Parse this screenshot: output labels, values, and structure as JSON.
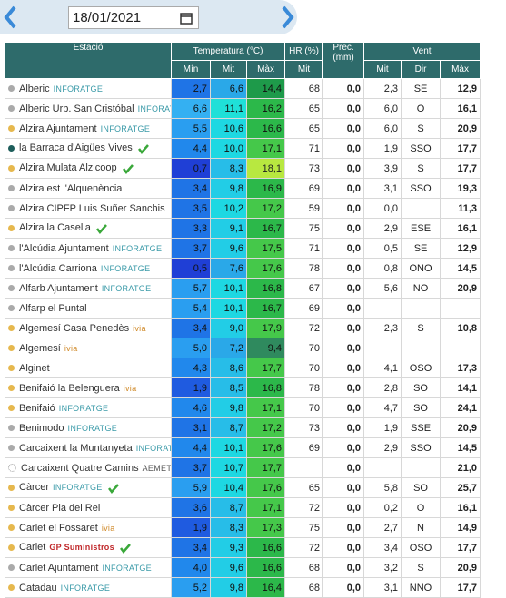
{
  "header": {
    "date": "18/01/2021"
  },
  "table": {
    "columns": {
      "station": "Estació",
      "temperature": "Temperatura (°C)",
      "hr": "HR (%)",
      "prec": "Prec. (mm)",
      "wind": "Vent"
    },
    "subheaders": [
      "Mín",
      "Mit",
      "Màx",
      "Mit",
      "Mit",
      "Dir",
      "Màx"
    ],
    "rows": [
      {
        "station": "Alberic",
        "tag": "INFORATGE",
        "tag_color": "#3a9aa8",
        "dot": "#aaaaaa",
        "check": false,
        "values": [
          "2,7",
          "6,6",
          "14,4",
          "68",
          "0,0",
          "2,3",
          "SE",
          "12,9"
        ],
        "colors": [
          "#1f74e6",
          "#2aa8e8",
          "#1e9a4a"
        ]
      },
      {
        "station": "Alberic Urb. San Cristóbal",
        "tag": "INFORATGE",
        "tag_color": "#3a9aa8",
        "dot": "#aaaaaa",
        "check": false,
        "values": [
          "6,6",
          "11,1",
          "16,2",
          "65",
          "0,0",
          "6,0",
          "O",
          "16,1"
        ],
        "colors": [
          "#34b0f2",
          "#1fe0d8",
          "#2cb84a"
        ]
      },
      {
        "station": "Alzira Ajuntament",
        "tag": "INFORATGE",
        "tag_color": "#3a9aa8",
        "dot": "#e6b84e",
        "check": false,
        "values": [
          "5,5",
          "10,6",
          "16,6",
          "65",
          "0,0",
          "6,0",
          "S",
          "20,9"
        ],
        "colors": [
          "#2a9ef0",
          "#1ed8e2",
          "#2cb84a"
        ]
      },
      {
        "station": "la Barraca d'Aigües Vives",
        "tag": null,
        "tag_color": null,
        "dot": "#1d5d5a",
        "check": true,
        "values": [
          "4,4",
          "10,0",
          "17,1",
          "71",
          "0,0",
          "1,9",
          "SSO",
          "17,7"
        ],
        "colors": [
          "#2188ec",
          "#1ed8e2",
          "#45c84a"
        ]
      },
      {
        "station": "Alzira Mulata Alzicoop",
        "tag": null,
        "tag_color": null,
        "dot": "#e6b84e",
        "check": true,
        "values": [
          "0,7",
          "8,3",
          "18,1",
          "73",
          "0,0",
          "3,9",
          "S",
          "17,7"
        ],
        "colors": [
          "#1f3fd6",
          "#27bde8",
          "#b8e840"
        ]
      },
      {
        "station": "Alzira est l'Alquenència",
        "tag": null,
        "tag_color": null,
        "dot": "#aaaaaa",
        "check": false,
        "values": [
          "3,4",
          "9,8",
          "16,9",
          "69",
          "0,0",
          "3,1",
          "SSO",
          "19,3"
        ],
        "colors": [
          "#1f74e6",
          "#22cde6",
          "#2cb84a"
        ]
      },
      {
        "station": "Alzira CIPFP Luis Suñer Sanchis",
        "tag": null,
        "tag_color": null,
        "dot": "#aaaaaa",
        "check": false,
        "values": [
          "3,5",
          "10,2",
          "17,2",
          "59",
          "0,0",
          "0,0",
          null,
          "11,3"
        ],
        "colors": [
          "#1f74e6",
          "#1ed8e2",
          "#45c84a"
        ]
      },
      {
        "station": "Alzira la Casella",
        "tag": null,
        "tag_color": null,
        "dot": "#e6b84e",
        "check": true,
        "values": [
          "3,3",
          "9,1",
          "16,7",
          "75",
          "0,0",
          "2,9",
          "ESE",
          "16,1"
        ],
        "colors": [
          "#1f74e6",
          "#22cde6",
          "#2cb84a"
        ]
      },
      {
        "station": "l'Alcúdia Ajuntament",
        "tag": "INFORATGE",
        "tag_color": "#3a9aa8",
        "dot": "#aaaaaa",
        "check": false,
        "values": [
          "3,7",
          "9,6",
          "17,5",
          "71",
          "0,0",
          "0,5",
          "SE",
          "12,9"
        ],
        "colors": [
          "#1f74e6",
          "#22cde6",
          "#45c84a"
        ]
      },
      {
        "station": "l'Alcúdia Carriona",
        "tag": "INFORATGE",
        "tag_color": "#3a9aa8",
        "dot": "#aaaaaa",
        "check": false,
        "values": [
          "0,5",
          "7,6",
          "17,6",
          "78",
          "0,0",
          "0,8",
          "ONO",
          "14,5"
        ],
        "colors": [
          "#1f3fd6",
          "#2aa8e8",
          "#45c84a"
        ]
      },
      {
        "station": "Alfarb Ajuntament",
        "tag": "INFORATGE",
        "tag_color": "#3a9aa8",
        "dot": "#aaaaaa",
        "check": false,
        "values": [
          "5,7",
          "10,1",
          "16,8",
          "67",
          "0,0",
          "5,6",
          "NO",
          "20,9"
        ],
        "colors": [
          "#2a9ef0",
          "#1ed8e2",
          "#2cb84a"
        ]
      },
      {
        "station": "Alfarp el Puntal",
        "tag": null,
        "tag_color": null,
        "dot": "#aaaaaa",
        "check": false,
        "values": [
          "5,4",
          "10,1",
          "16,7",
          "69",
          "0,0",
          null,
          null,
          null
        ],
        "colors": [
          "#2a9ef0",
          "#1ed8e2",
          "#2cb84a"
        ]
      },
      {
        "station": "Algemesí Casa Penedès",
        "tag": "ivia",
        "tag_color": "#d08a2a",
        "dot": "#e6b84e",
        "check": false,
        "values": [
          "3,4",
          "9,0",
          "17,9",
          "72",
          "0,0",
          "2,3",
          "S",
          "10,8"
        ],
        "colors": [
          "#1f74e6",
          "#22cde6",
          "#45c84a"
        ]
      },
      {
        "station": "Algemesí",
        "tag": "ivia",
        "tag_color": "#d08a2a",
        "dot": "#e6b84e",
        "check": false,
        "values": [
          "5,0",
          "7,2",
          "9,4",
          "70",
          "0,0",
          null,
          null,
          null
        ],
        "colors": [
          "#2a9ef0",
          "#2aa8e8",
          "#2f8a5e"
        ]
      },
      {
        "station": "Alginet",
        "tag": null,
        "tag_color": null,
        "dot": "#e6b84e",
        "check": false,
        "values": [
          "4,3",
          "8,6",
          "17,7",
          "70",
          "0,0",
          "4,1",
          "OSO",
          "17,3"
        ],
        "colors": [
          "#2188ec",
          "#27bde8",
          "#45c84a"
        ]
      },
      {
        "station": "Benifaió la Belenguera",
        "tag": "ivia",
        "tag_color": "#d08a2a",
        "dot": "#e6b84e",
        "check": false,
        "values": [
          "1,9",
          "8,5",
          "16,8",
          "78",
          "0,0",
          "2,8",
          "SO",
          "14,1"
        ],
        "colors": [
          "#1f5be0",
          "#27bde8",
          "#2cb84a"
        ]
      },
      {
        "station": "Benifaió",
        "tag": "INFORATGE",
        "tag_color": "#3a9aa8",
        "dot": "#e6b84e",
        "check": false,
        "values": [
          "4,6",
          "9,8",
          "17,1",
          "70",
          "0,0",
          "4,7",
          "SO",
          "24,1"
        ],
        "colors": [
          "#2188ec",
          "#22cde6",
          "#45c84a"
        ]
      },
      {
        "station": "Benimodo",
        "tag": "INFORATGE",
        "tag_color": "#3a9aa8",
        "dot": "#aaaaaa",
        "check": false,
        "values": [
          "3,1",
          "8,7",
          "17,2",
          "73",
          "0,0",
          "1,9",
          "SSE",
          "20,9"
        ],
        "colors": [
          "#1f74e6",
          "#27bde8",
          "#45c84a"
        ]
      },
      {
        "station": "Carcaixent la Muntanyeta",
        "tag": "INFORATGE",
        "tag_color": "#3a9aa8",
        "dot": "#aaaaaa",
        "check": false,
        "values": [
          "4,4",
          "10,1",
          "17,6",
          "69",
          "0,0",
          "2,9",
          "SSO",
          "14,5"
        ],
        "colors": [
          "#2188ec",
          "#1ed8e2",
          "#45c84a"
        ]
      },
      {
        "station": "Carcaixent Quatre Camins",
        "tag": "AEMET",
        "tag_color": "#555555",
        "dot": "#ffffff",
        "check": false,
        "values": [
          "3,7",
          "10,7",
          "17,7",
          null,
          "0,0",
          null,
          null,
          "21,0"
        ],
        "colors": [
          "#1f74e6",
          "#1ed8e2",
          "#45c84a"
        ]
      },
      {
        "station": "Càrcer",
        "tag": "INFORATGE",
        "tag_color": "#3a9aa8",
        "dot": "#e6b84e",
        "check": true,
        "values": [
          "5,9",
          "10,4",
          "17,6",
          "65",
          "0,0",
          "5,8",
          "SO",
          "25,7"
        ],
        "colors": [
          "#2a9ef0",
          "#1ed8e2",
          "#45c84a"
        ]
      },
      {
        "station": "Càrcer Pla del Rei",
        "tag": null,
        "tag_color": null,
        "dot": "#e6b84e",
        "check": false,
        "values": [
          "3,6",
          "8,7",
          "17,1",
          "72",
          "0,0",
          "0,2",
          "O",
          "16,1"
        ],
        "colors": [
          "#1f74e6",
          "#27bde8",
          "#45c84a"
        ]
      },
      {
        "station": "Carlet el Fossaret",
        "tag": "ivia",
        "tag_color": "#d08a2a",
        "dot": "#e6b84e",
        "check": false,
        "values": [
          "1,9",
          "8,3",
          "17,3",
          "75",
          "0,0",
          "2,7",
          "N",
          "14,9"
        ],
        "colors": [
          "#1f5be0",
          "#27bde8",
          "#45c84a"
        ]
      },
      {
        "station": "Carlet",
        "tag": "GP Suministros",
        "tag_color": "#c0282a",
        "dot": "#e6b84e",
        "check": true,
        "values": [
          "3,4",
          "9,3",
          "16,6",
          "72",
          "0,0",
          "3,4",
          "OSO",
          "17,7"
        ],
        "colors": [
          "#1f74e6",
          "#22cde6",
          "#2cb84a"
        ]
      },
      {
        "station": "Carlet Ajuntament",
        "tag": "INFORATGE",
        "tag_color": "#3a9aa8",
        "dot": "#aaaaaa",
        "check": false,
        "values": [
          "4,0",
          "9,6",
          "16,6",
          "68",
          "0,0",
          "3,2",
          "S",
          "20,9"
        ],
        "colors": [
          "#2188ec",
          "#22cde6",
          "#2cb84a"
        ]
      },
      {
        "station": "Catadau",
        "tag": "INFORATGE",
        "tag_color": "#3a9aa8",
        "dot": "#e6b84e",
        "check": false,
        "values": [
          "5,2",
          "9,8",
          "16,4",
          "68",
          "0,0",
          "3,1",
          "NNO",
          "17,7"
        ],
        "colors": [
          "#2a9ef0",
          "#22cde6",
          "#2cb84a"
        ]
      }
    ]
  }
}
